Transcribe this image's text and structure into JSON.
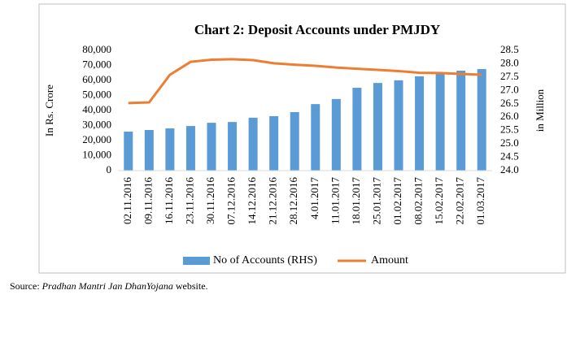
{
  "chart_data": {
    "type": "bar_line",
    "title": "Chart 2: Deposit Accounts under PMJDY",
    "y_label": "In Rs. Crore",
    "y2_label": "in Million",
    "categories": [
      "02.11.2016",
      "09.11.2016",
      "16.11.2016",
      "23.11.2016",
      "30.11.2016",
      "07.12.2016",
      "14.12.2016",
      "21.12.2016",
      "28.12.2016",
      "4.01.2017",
      "11.01.2017",
      "18.01.2017",
      "25.01.2017",
      "01.02.2017",
      "08.02.2017",
      "15.02.2017",
      "22.02.2017",
      "01.03.2017"
    ],
    "series": [
      {
        "name": "No of Accounts (RHS)",
        "type": "bar",
        "axis": "y2",
        "color": "#5b9bd5",
        "values": [
          25.46,
          25.52,
          25.58,
          25.67,
          25.79,
          25.82,
          25.98,
          26.04,
          26.19,
          26.49,
          26.68,
          27.1,
          27.28,
          27.38,
          27.53,
          27.68,
          27.74,
          27.8
        ]
      },
      {
        "name": "Amount",
        "type": "line",
        "color": "#ed7d31",
        "values": [
          44900,
          45400,
          63800,
          72400,
          73800,
          74100,
          73500,
          71400,
          70500,
          69700,
          68600,
          67800,
          67000,
          66200,
          65100,
          64900,
          64300,
          63800
        ]
      }
    ],
    "ylim": [
      0,
      80000
    ],
    "yticks": [
      0,
      {
        "value": 10000,
        "label": "10,000"
      },
      {
        "value": 20000,
        "label": "20,000"
      },
      {
        "value": 30000,
        "label": "30,000"
      },
      {
        "value": 40000,
        "label": "40,000"
      },
      {
        "value": 50000,
        "label": "50,000"
      },
      {
        "value": 60000,
        "label": "60,000"
      },
      {
        "value": 70000,
        "label": "70,000"
      },
      {
        "value": 80000,
        "label": "80,000"
      }
    ],
    "y2lim": [
      24.0,
      28.5
    ],
    "y2ticks": [
      {
        "value": 24,
        "label": "24.0"
      },
      24.5,
      {
        "value": 25,
        "label": "25.0"
      },
      25.5,
      {
        "value": 26,
        "label": "26.0"
      },
      26.5,
      {
        "value": 27,
        "label": "27.0"
      },
      27.5,
      {
        "value": 28,
        "label": "28.0"
      },
      28.5
    ],
    "grid": false,
    "legend": "bottom"
  },
  "source": {
    "prefix": "Source:",
    "italic": "Pradhan Mantri Jan DhanYojana",
    "suffix": "website."
  }
}
